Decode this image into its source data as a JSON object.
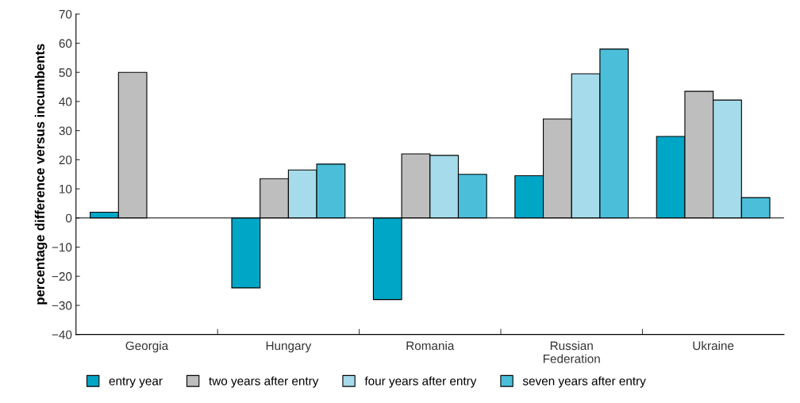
{
  "chart_data": {
    "type": "bar",
    "ylabel": "percentage difference versus incumbents",
    "categories": [
      "Georgia",
      "Hungary",
      "Romania",
      "Russian\nFederation",
      "Ukraine"
    ],
    "series": [
      {
        "name": "entry year",
        "color": "#00a6c6",
        "values": [
          2,
          -24,
          -28,
          14.5,
          28
        ]
      },
      {
        "name": "two years after entry",
        "color": "#bebebe",
        "values": [
          50,
          13.5,
          22,
          34,
          43.5
        ]
      },
      {
        "name": "four years after entry",
        "color": "#a5dbea",
        "values": [
          null,
          16.5,
          21.5,
          49.5,
          40.5
        ]
      },
      {
        "name": "seven years after entry",
        "color": "#4bbfda",
        "values": [
          null,
          18.5,
          15,
          58,
          7
        ]
      }
    ],
    "ylim": [
      -40,
      70
    ],
    "yticks": [
      {
        "value": -40,
        "label": "−40"
      },
      {
        "value": -30,
        "label": "−30"
      },
      {
        "value": -20,
        "label": "−20"
      },
      {
        "value": -10,
        "label": "−10"
      },
      0,
      10,
      20,
      30,
      40,
      50,
      60,
      70
    ],
    "ref_lines": [
      {
        "axis": "y",
        "value": 0,
        "color": "#000000"
      }
    ],
    "grid": false,
    "legend": "bottom"
  }
}
